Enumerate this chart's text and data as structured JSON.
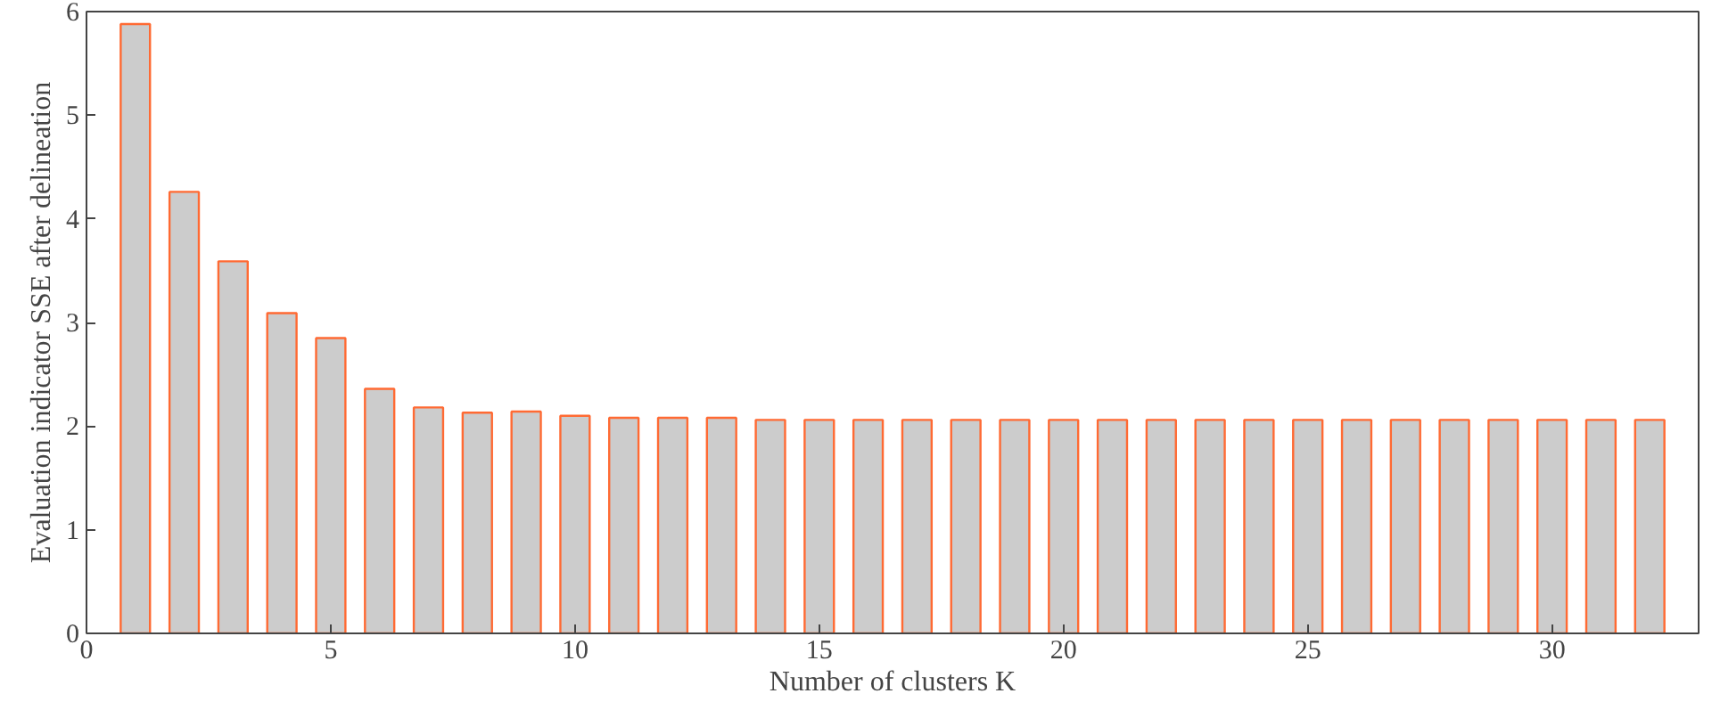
{
  "chart_data": {
    "type": "bar",
    "xlabel": "Number of clusters K",
    "ylabel": "Evaluation indicator SSE after delineation",
    "x": [
      1,
      2,
      3,
      4,
      5,
      6,
      7,
      8,
      9,
      10,
      11,
      12,
      13,
      14,
      15,
      16,
      17,
      18,
      19,
      20,
      21,
      22,
      23,
      24,
      25,
      26,
      27,
      28,
      29,
      30,
      31,
      32
    ],
    "series": [
      {
        "color": "#cccccc",
        "values": [
          5.88,
          4.26,
          3.59,
          3.09,
          2.85,
          2.36,
          2.18,
          2.13,
          2.14,
          2.1,
          2.08,
          2.08,
          2.08,
          2.06,
          2.06,
          2.06,
          2.06,
          2.06,
          2.06,
          2.06,
          2.06,
          2.06,
          2.06,
          2.06,
          2.06,
          2.06,
          2.06,
          2.06,
          2.06,
          2.06,
          2.06,
          2.06
        ]
      }
    ],
    "xlim": [
      0,
      33
    ],
    "ylim": [
      0,
      6
    ],
    "xticks": [
      0,
      5,
      10,
      15,
      20,
      25,
      30
    ],
    "yticks": [
      0,
      1,
      2,
      3,
      4,
      5,
      6
    ],
    "grid": false
  }
}
